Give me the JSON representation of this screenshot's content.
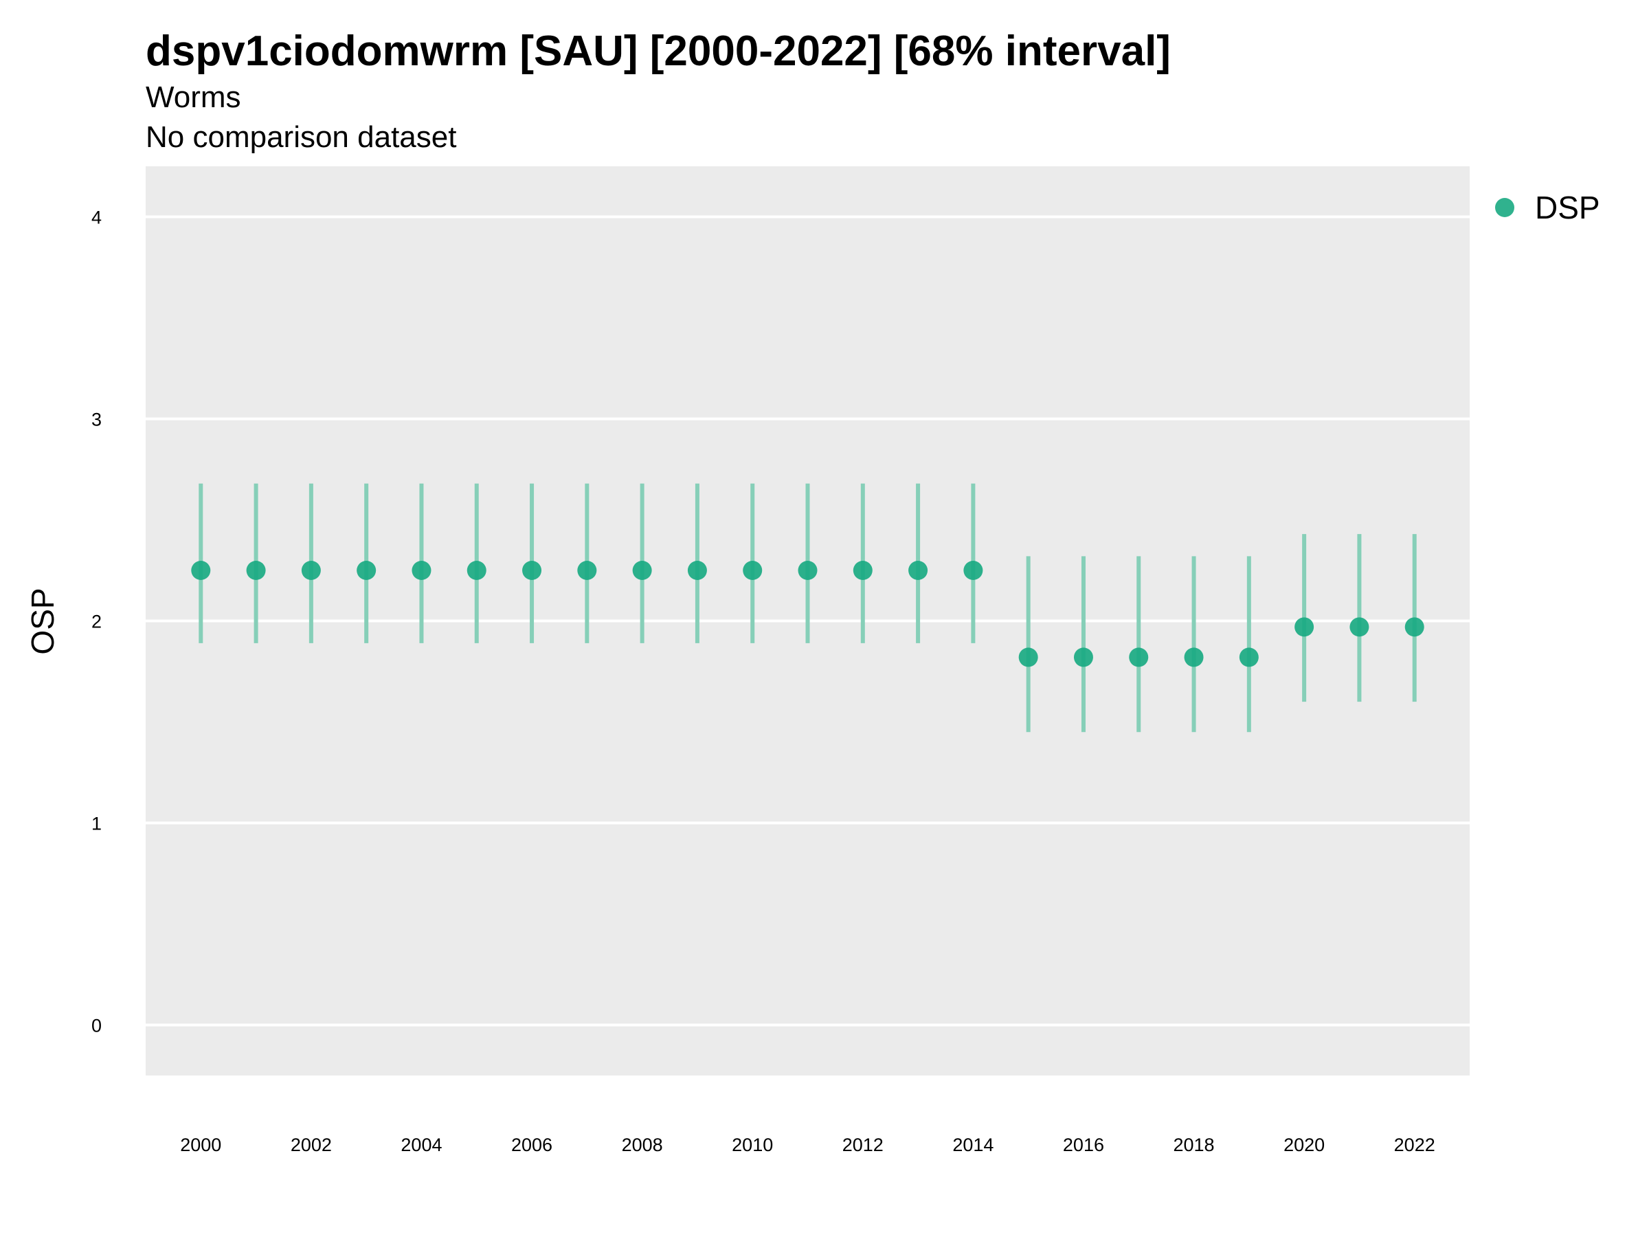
{
  "chart_data": {
    "type": "scatter",
    "title": "dspv1ciodomwrm [SAU] [2000-2022] [68% interval]",
    "subtitle": [
      "Worms",
      "No comparison dataset"
    ],
    "xlabel": "",
    "ylabel": "OSP",
    "ylim": [
      -0.25,
      4.25
    ],
    "xlim": [
      1999,
      2023
    ],
    "y_ticks": [
      "0",
      "1",
      "2",
      "3",
      "4"
    ],
    "x_ticks": [
      "2000",
      "2002",
      "2004",
      "2006",
      "2008",
      "2010",
      "2012",
      "2014",
      "2016",
      "2018",
      "2020",
      "2022"
    ],
    "grid": true,
    "legend_position": "top-right",
    "colors": {
      "point": "#1aaa82",
      "interval": "#86cfb8",
      "panel": "#ebebeb",
      "grid": "#ffffff"
    },
    "series": [
      {
        "name": "DSP",
        "x": [
          2000,
          2001,
          2002,
          2003,
          2004,
          2005,
          2006,
          2007,
          2008,
          2009,
          2010,
          2011,
          2012,
          2013,
          2014,
          2015,
          2016,
          2017,
          2018,
          2019,
          2020,
          2021,
          2022
        ],
        "y": [
          2.25,
          2.25,
          2.25,
          2.25,
          2.25,
          2.25,
          2.25,
          2.25,
          2.25,
          2.25,
          2.25,
          2.25,
          2.25,
          2.25,
          2.25,
          1.82,
          1.82,
          1.82,
          1.82,
          1.82,
          1.97,
          1.97,
          1.97
        ],
        "lower": [
          1.89,
          1.89,
          1.89,
          1.89,
          1.89,
          1.89,
          1.89,
          1.89,
          1.89,
          1.89,
          1.89,
          1.89,
          1.89,
          1.89,
          1.89,
          1.45,
          1.45,
          1.45,
          1.45,
          1.45,
          1.6,
          1.6,
          1.6
        ],
        "upper": [
          2.68,
          2.68,
          2.68,
          2.68,
          2.68,
          2.68,
          2.68,
          2.68,
          2.68,
          2.68,
          2.68,
          2.68,
          2.68,
          2.68,
          2.68,
          2.32,
          2.32,
          2.32,
          2.32,
          2.32,
          2.43,
          2.43,
          2.43
        ]
      }
    ]
  }
}
